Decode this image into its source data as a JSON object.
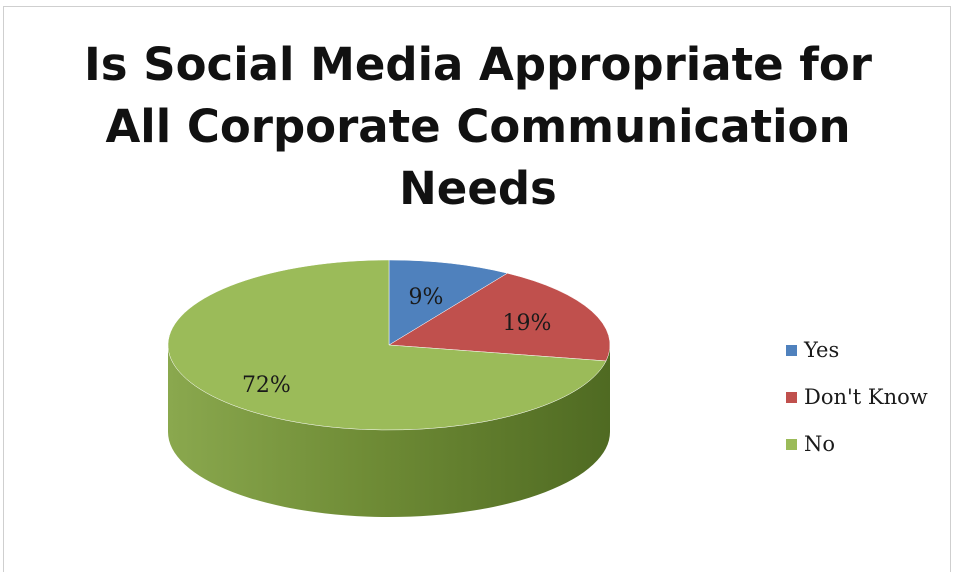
{
  "chart_data": {
    "type": "pie",
    "title_lines": [
      "Is Social Media Appropriate for",
      "All Corporate Communication",
      "Needs"
    ],
    "slices": [
      {
        "name": "Yes",
        "value": 9,
        "label": "9%",
        "color": "#4f81bd"
      },
      {
        "name": "Don't Know",
        "value": 19,
        "label": "19%",
        "color": "#c0504d"
      },
      {
        "name": "No",
        "value": 72,
        "label": "72%",
        "color": "#9bbb59"
      }
    ],
    "legend_position": "right",
    "style": "3d"
  }
}
